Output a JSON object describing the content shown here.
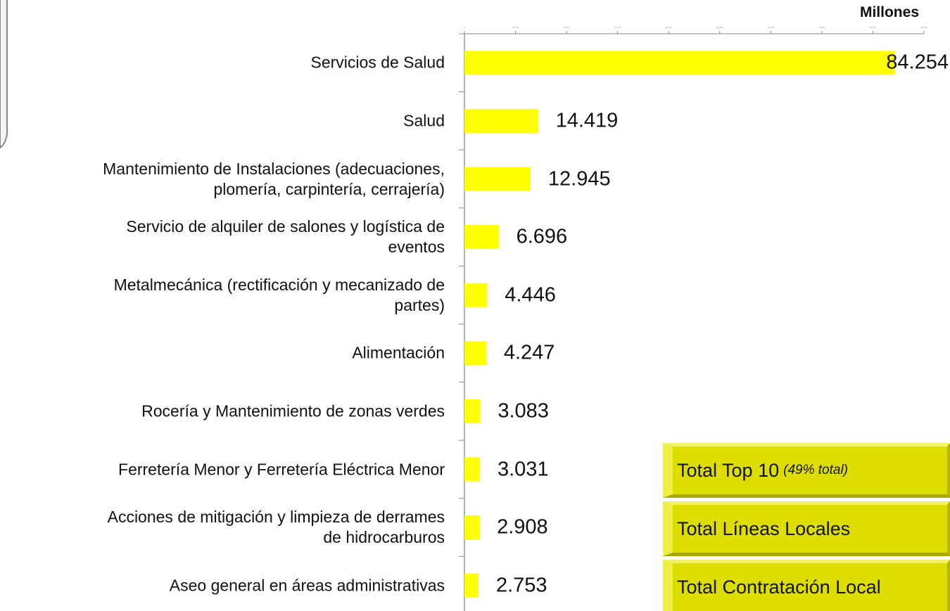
{
  "chart_data": {
    "type": "barh",
    "title": "Millones",
    "categories": [
      "Servicios de Salud",
      "Salud",
      "Mantenimiento de Instalaciones (adecuaciones,\nplomería, carpintería, cerrajería)",
      "Servicio de alquiler de salones y logística de\neventos",
      "Metalmecánica (rectificación y mecanizado de\npartes)",
      "Alimentación",
      "Rocería y Mantenimiento de zonas verdes",
      "Ferretería Menor y Ferretería Eléctrica Menor",
      "Acciones de mitigación y limpieza de derrames\nde hidrocarburos",
      "Aseo general en áreas administrativas"
    ],
    "values": [
      84254,
      14419,
      12945,
      6696,
      4446,
      4247,
      3083,
      3031,
      2908,
      2753
    ],
    "value_labels": [
      "84.254",
      "14.419",
      "12.945",
      "6.696",
      "4.446",
      "4.247",
      "3.083",
      "3.031",
      "2.908",
      "2.753"
    ],
    "color": "#ffff00",
    "xlim": [
      0,
      90000
    ],
    "xticks": [
      0,
      {
        "value": 10000,
        "label": "10.000"
      },
      {
        "value": 20000,
        "label": "20.000"
      },
      {
        "value": 30000,
        "label": "30.000"
      },
      {
        "value": 40000,
        "label": "40.000"
      },
      {
        "value": 50000,
        "label": "50.000"
      },
      {
        "value": 60000,
        "label": "60.000"
      },
      {
        "value": 70000,
        "label": "70.000"
      },
      {
        "value": 80000,
        "label": "80.000"
      },
      {
        "value": 90000,
        "label": "90.000"
      }
    ],
    "annotations": {
      "boxes": [
        {
          "text": "Total Top 10",
          "note": "(49% total)"
        },
        {
          "text": "Total Líneas Locales"
        },
        {
          "text": "Total Contratación Local"
        }
      ]
    }
  }
}
